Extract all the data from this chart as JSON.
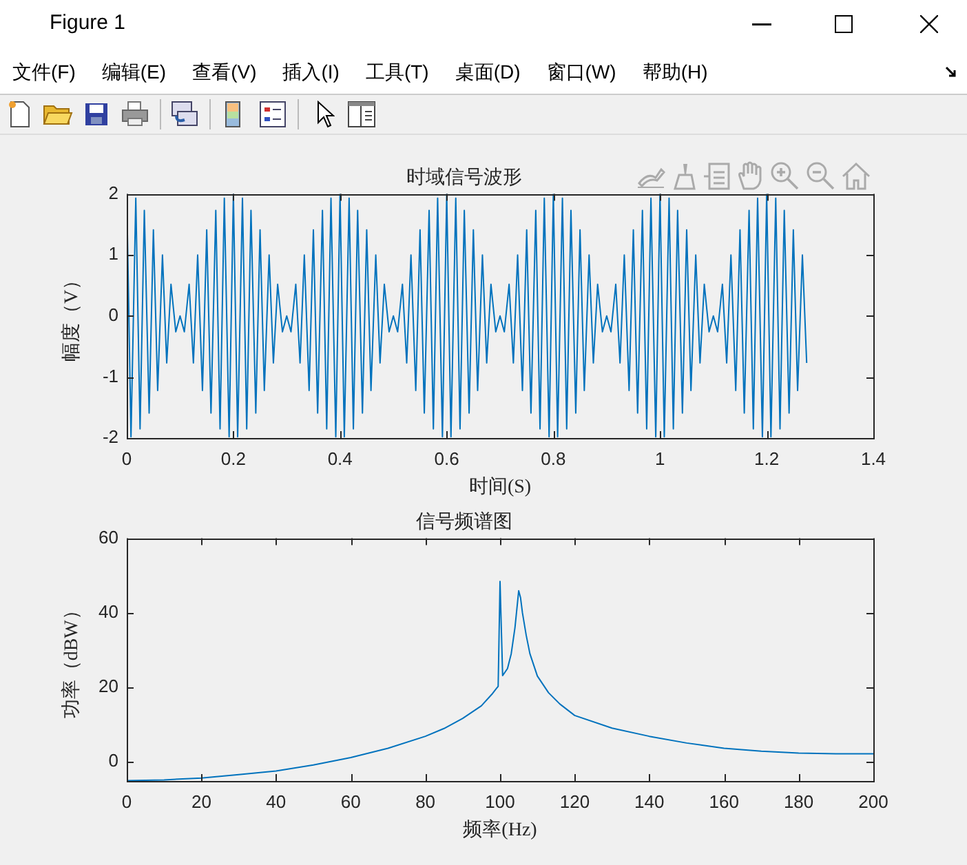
{
  "chart_data": [
    {
      "type": "other",
      "title": "Figure 1",
      "annotations": [
        "文件(F)",
        "编辑(E)",
        "查看(V)",
        "插入(I)",
        "工具(T)",
        "桌面(D)",
        "窗口(W)",
        "帮助(H)"
      ]
    },
    {
      "type": "line",
      "title": "时域信号波形",
      "xlabel": "时间(S)",
      "ylabel": "幅度（V）",
      "color": "#0072bd",
      "xlim": [
        0,
        1.4
      ],
      "xticks": [
        0,
        0.2,
        0.4,
        0.6,
        0.8,
        1,
        1.2,
        1.4
      ],
      "ylim": [
        -2,
        2
      ],
      "yticks": [
        -2,
        -1,
        0,
        1,
        2
      ],
      "marker": "none",
      "x": [
        0,
        0.008,
        0.017,
        0.025,
        0.033,
        0.042,
        0.05,
        0.058,
        0.067,
        0.075,
        0.083,
        0.092,
        0.1,
        0.108,
        0.117,
        0.125,
        0.133,
        0.142,
        0.15,
        0.158,
        0.167,
        0.175,
        0.183,
        0.192,
        0.2,
        0.208,
        0.217,
        0.225,
        0.233,
        0.242,
        0.25,
        0.258,
        0.267,
        0.275,
        0.283,
        0.292,
        0.3,
        0.308,
        0.317,
        0.325,
        0.333,
        0.342,
        0.35,
        0.358,
        0.367,
        0.375,
        0.383,
        0.392,
        0.4,
        0.408,
        0.417,
        0.425,
        0.433,
        0.442,
        0.45,
        0.458,
        0.467,
        0.475,
        0.483,
        0.492,
        0.5,
        0.508,
        0.517,
        0.525,
        0.533,
        0.542,
        0.55,
        0.558,
        0.567,
        0.575,
        0.583,
        0.592,
        0.6,
        0.608,
        0.617,
        0.625,
        0.633,
        0.642,
        0.65,
        0.658,
        0.667,
        0.675,
        0.683,
        0.692,
        0.7,
        0.708,
        0.717,
        0.725,
        0.733,
        0.742,
        0.75,
        0.758,
        0.767,
        0.775,
        0.783,
        0.792,
        0.8,
        0.808,
        0.817,
        0.825,
        0.833,
        0.842,
        0.85,
        0.858,
        0.867,
        0.875,
        0.883,
        0.892,
        0.9,
        0.908,
        0.917,
        0.925,
        0.933,
        0.942,
        0.95,
        0.958,
        0.967,
        0.975,
        0.983,
        0.992,
        1,
        1.008,
        1.017,
        1.025,
        1.033,
        1.042,
        1.05,
        1.058,
        1.067,
        1.075,
        1.083,
        1.092,
        1.1,
        1.108,
        1.117,
        1.125,
        1.133,
        1.142,
        1.15,
        1.158,
        1.167,
        1.175,
        1.183,
        1.192,
        1.2,
        1.208,
        1.217,
        1.225,
        1.233,
        1.242,
        1.25,
        1.258,
        1.267,
        1.275
      ],
      "values": [
        2,
        -1.98,
        1.93,
        -1.85,
        1.73,
        -1.59,
        1.41,
        -1.22,
        1,
        -0.77,
        0.52,
        -0.26,
        0,
        -0.26,
        0.52,
        -0.77,
        1,
        -1.22,
        1.41,
        -1.59,
        1.73,
        -1.85,
        1.93,
        -1.98,
        2,
        -1.98,
        1.93,
        -1.85,
        1.73,
        -1.59,
        1.41,
        -1.22,
        1,
        -0.77,
        0.52,
        -0.26,
        0,
        -0.26,
        0.52,
        -0.77,
        1,
        -1.22,
        1.41,
        -1.59,
        1.73,
        -1.85,
        1.93,
        -1.98,
        2,
        -1.98,
        1.93,
        -1.85,
        1.73,
        -1.59,
        1.41,
        -1.22,
        1,
        -0.77,
        0.52,
        -0.26,
        0,
        -0.26,
        0.52,
        -0.77,
        1,
        -1.22,
        1.41,
        -1.59,
        1.73,
        -1.85,
        1.93,
        -1.98,
        2,
        -1.98,
        1.93,
        -1.85,
        1.73,
        -1.59,
        1.41,
        -1.22,
        1,
        -0.77,
        0.52,
        -0.26,
        0,
        -0.26,
        0.52,
        -0.77,
        1,
        -1.22,
        1.41,
        -1.59,
        1.73,
        -1.85,
        1.93,
        -1.98,
        2,
        -1.98,
        1.93,
        -1.85,
        1.73,
        -1.59,
        1.41,
        -1.22,
        1,
        -0.77,
        0.52,
        -0.26,
        0,
        -0.26,
        0.52,
        -0.77,
        1,
        -1.22,
        1.41,
        -1.59,
        1.73,
        -1.85,
        1.93,
        -1.98,
        2,
        -1.98,
        1.93,
        -1.85,
        1.73,
        -1.59,
        1.41,
        -1.22,
        1,
        -0.77,
        0.52,
        -0.26,
        0,
        -0.26,
        0.52,
        -0.77,
        1,
        -1.22,
        1.41,
        -1.59,
        1.73,
        -1.85,
        1.93,
        -1.98,
        2,
        -1.98,
        1.93,
        -1.85,
        1.73,
        -1.59,
        1.41,
        -1.22,
        1,
        -0.77
      ]
    },
    {
      "type": "line",
      "title": "信号频谱图",
      "xlabel": "频率(Hz)",
      "ylabel": "功率（dBW）",
      "color": "#0072bd",
      "xlim": [
        0,
        200
      ],
      "xticks": [
        0,
        20,
        40,
        60,
        80,
        100,
        120,
        140,
        160,
        180,
        200
      ],
      "ylim": [
        -5.2,
        60
      ],
      "yticks": [
        0,
        20,
        40,
        60
      ],
      "marker": "none",
      "x": [
        0,
        10,
        20,
        30,
        40,
        50,
        60,
        70,
        80,
        85,
        90,
        95,
        98,
        99,
        99.5,
        100,
        100.7,
        102,
        103,
        104,
        105,
        105.5,
        106,
        107,
        108,
        110,
        113,
        116,
        120,
        130,
        140,
        150,
        160,
        170,
        180,
        190,
        200
      ],
      "values": [
        -5.1,
        -4.9,
        -4.4,
        -3.5,
        -2.5,
        -0.9,
        1.1,
        3.6,
        6.8,
        8.9,
        11.6,
        15,
        18.3,
        19.6,
        20.2,
        48.4,
        23.1,
        25,
        29,
        36,
        45.9,
        44,
        40,
        34,
        29,
        23,
        18.5,
        15.5,
        12.4,
        9,
        6.8,
        5,
        3.6,
        2.8,
        2.3,
        2.1,
        2.1
      ]
    }
  ]
}
